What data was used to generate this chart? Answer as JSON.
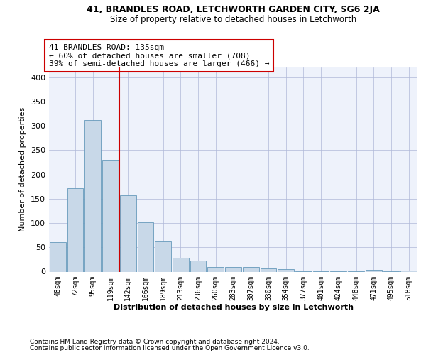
{
  "title1": "41, BRANDLES ROAD, LETCHWORTH GARDEN CITY, SG6 2JA",
  "title2": "Size of property relative to detached houses in Letchworth",
  "xlabel": "Distribution of detached houses by size in Letchworth",
  "ylabel": "Number of detached properties",
  "footer1": "Contains HM Land Registry data © Crown copyright and database right 2024.",
  "footer2": "Contains public sector information licensed under the Open Government Licence v3.0.",
  "annotation_line1": "41 BRANDLES ROAD: 135sqm",
  "annotation_line2": "← 60% of detached houses are smaller (708)",
  "annotation_line3": "39% of semi-detached houses are larger (466) →",
  "categories": [
    "48sqm",
    "72sqm",
    "95sqm",
    "119sqm",
    "142sqm",
    "166sqm",
    "189sqm",
    "213sqm",
    "236sqm",
    "260sqm",
    "283sqm",
    "307sqm",
    "330sqm",
    "354sqm",
    "377sqm",
    "401sqm",
    "424sqm",
    "448sqm",
    "471sqm",
    "495sqm",
    "518sqm"
  ],
  "values": [
    60,
    172,
    312,
    228,
    157,
    101,
    62,
    28,
    22,
    10,
    10,
    10,
    6,
    5,
    1,
    1,
    1,
    1,
    3,
    1,
    2
  ],
  "bar_color": "#c8d8e8",
  "bar_edge_color": "#6699bb",
  "vline_color": "#cc0000",
  "vline_x": 3.5,
  "annotation_box_color": "#cc0000",
  "background_color": "#eef2fb",
  "ylim": [
    0,
    420
  ],
  "yticks": [
    0,
    50,
    100,
    150,
    200,
    250,
    300,
    350,
    400
  ],
  "grid_color": "#b0b8d8",
  "fig_bg": "#ffffff"
}
